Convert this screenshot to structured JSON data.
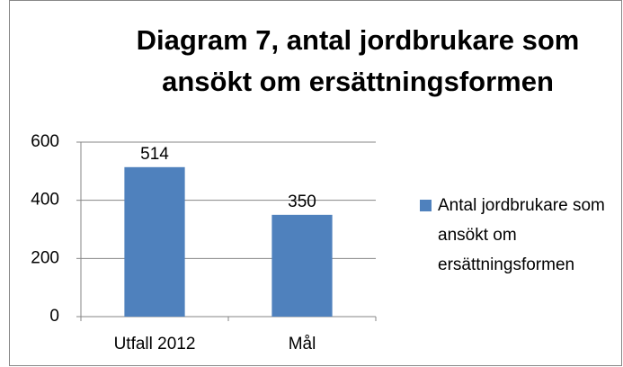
{
  "chart_data": {
    "type": "bar",
    "title": "Diagram 7, antal jordbrukare som ansökt om ersättningsformen",
    "categories": [
      "Utfall 2012",
      "Mål"
    ],
    "series": [
      {
        "name": "Antal jordbrukare som ansökt om ersättningsformen",
        "color": "#4f81bd",
        "values": [
          514,
          350
        ]
      }
    ],
    "ylim": [
      0,
      600
    ],
    "yticks": [
      0,
      200,
      400,
      600
    ],
    "grid": true,
    "legend": "right",
    "data_labels": true
  }
}
